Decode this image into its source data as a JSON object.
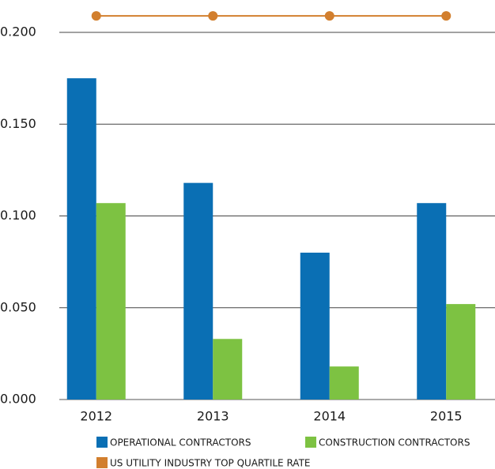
{
  "chart_data": {
    "type": "bar",
    "categories": [
      "2012",
      "2013",
      "2014",
      "2015"
    ],
    "series": [
      {
        "name": "OPERATIONAL CONTRACTORS",
        "color": "#0a6fb4",
        "values": [
          0.175,
          0.118,
          0.08,
          0.107
        ]
      },
      {
        "name": "CONSTRUCTION CONTRACTORS",
        "color": "#7dc242",
        "values": [
          0.107,
          0.033,
          0.018,
          0.052
        ]
      },
      {
        "name": "US UTILITY INDUSTRY TOP QUARTILE RATE",
        "color": "#d27f2e",
        "type": "line",
        "values": [
          0.209,
          0.209,
          0.209,
          0.209
        ]
      }
    ],
    "ylim": [
      0,
      0.2
    ],
    "yticks": [
      {
        "value": 0,
        "label": "0.000"
      },
      {
        "value": 0.05,
        "label": "0.050"
      },
      {
        "value": 0.1,
        "label": "0.100"
      },
      {
        "value": 0.15,
        "label": "0.150"
      },
      {
        "value": 0.2,
        "label": "0.200"
      }
    ],
    "grid": true
  }
}
